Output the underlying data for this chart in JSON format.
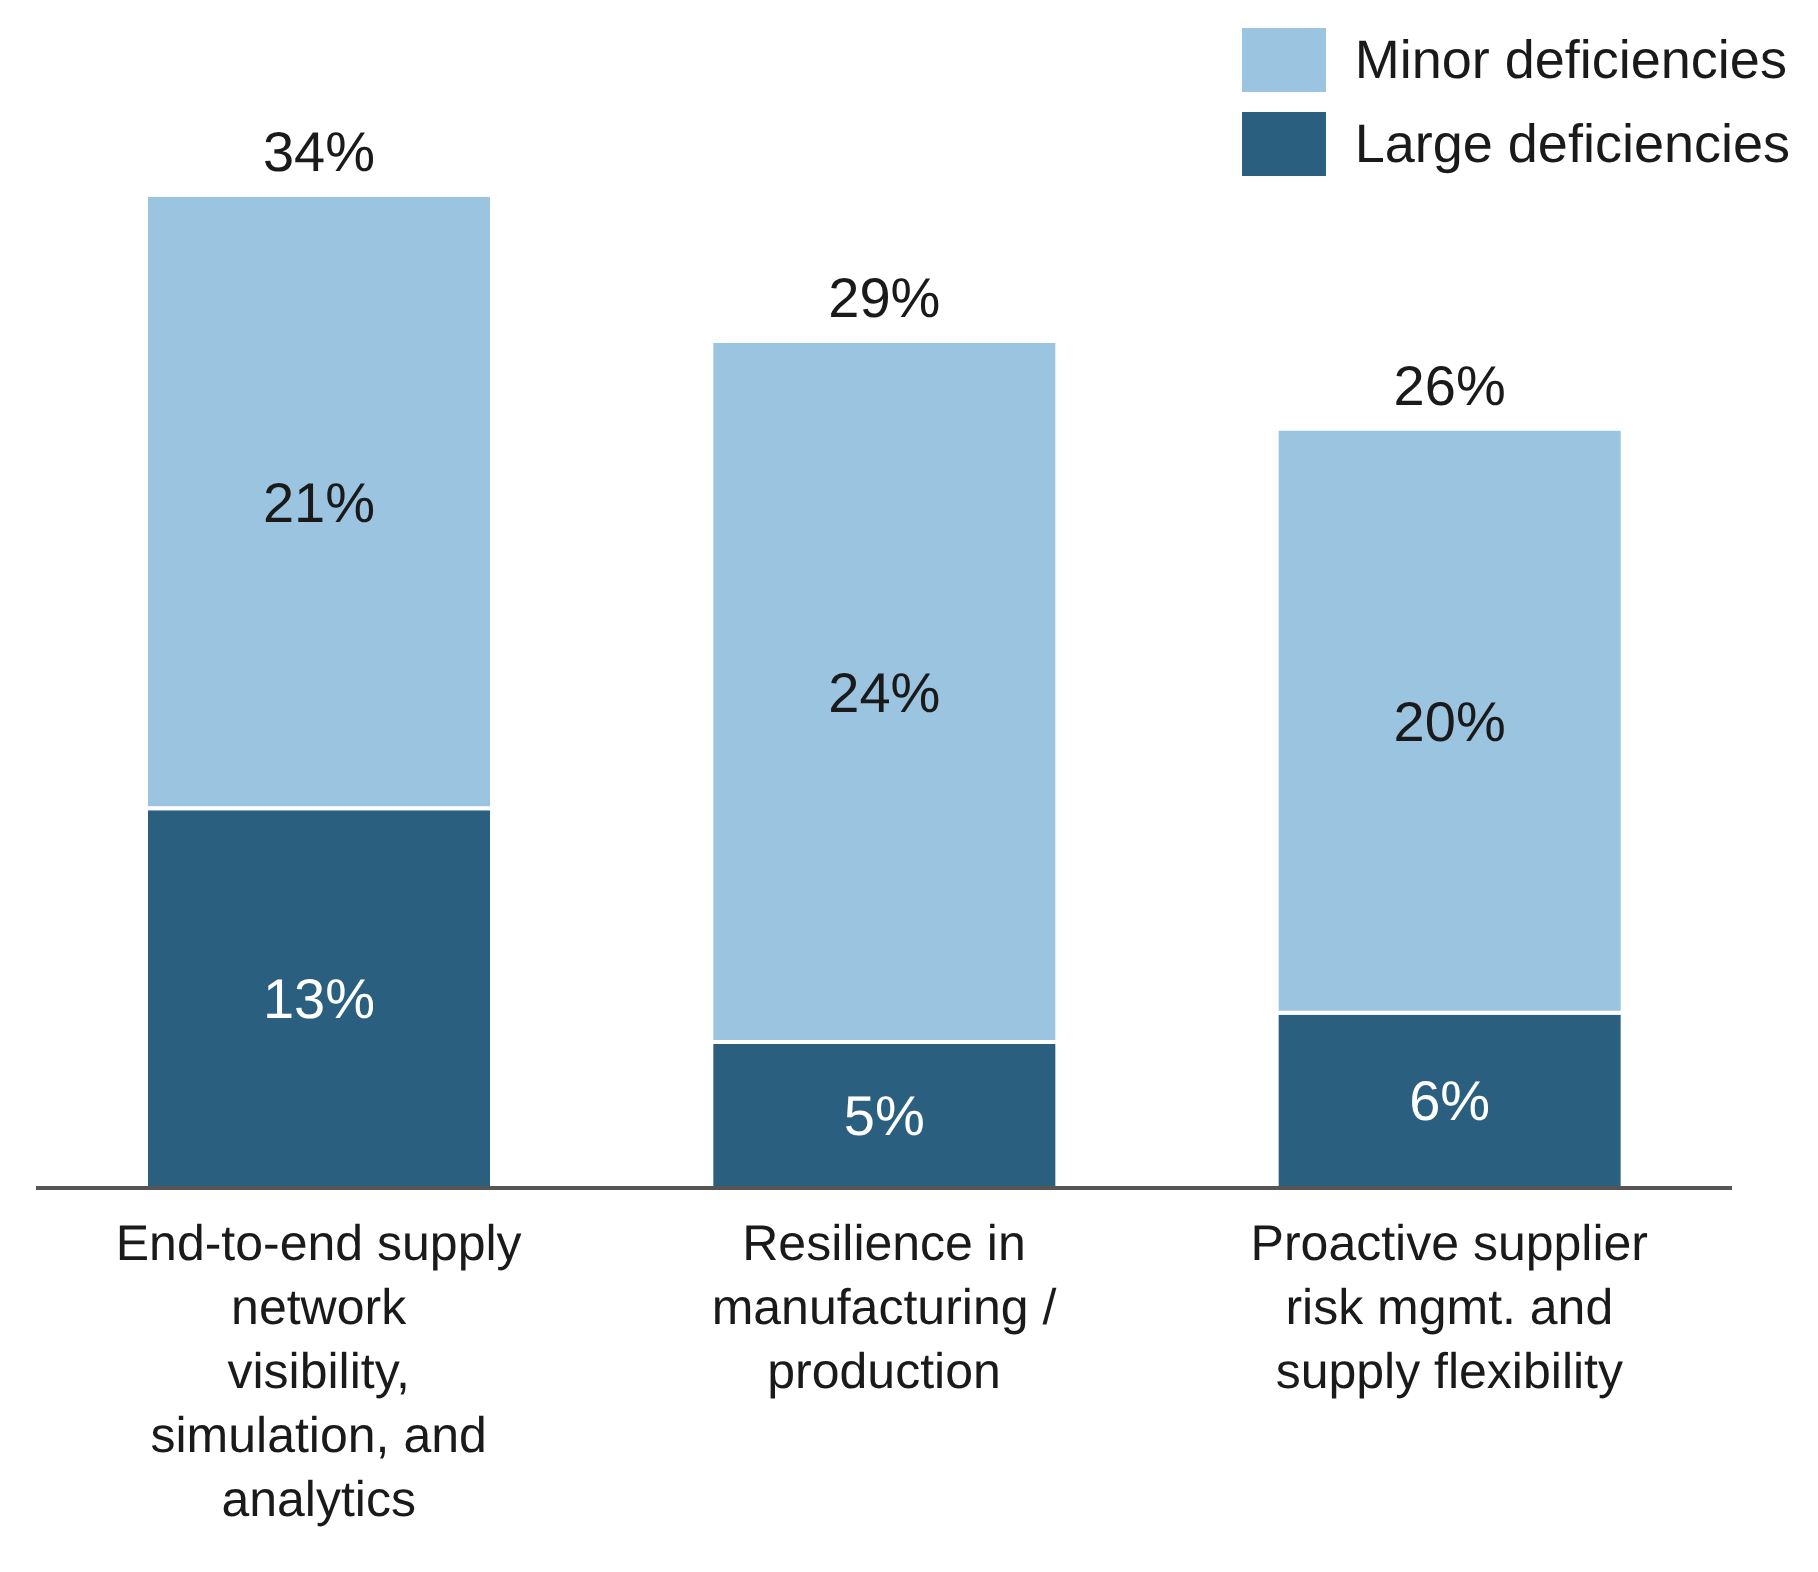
{
  "chart_data": {
    "type": "bar",
    "stacked": true,
    "categories": [
      "End-to-end supply network visibility, simulation, and analytics",
      "Resilience in manufacturing / production",
      "Proactive supplier risk mgmt. and supply flexibility"
    ],
    "series": [
      {
        "name": "Large deficiencies",
        "color": "#2a5f80",
        "values": [
          13,
          5,
          6
        ],
        "value_labels": [
          "13%",
          "5%",
          "6%"
        ]
      },
      {
        "name": "Minor deficiencies",
        "color": "#9ac4e0",
        "values": [
          21,
          24,
          20
        ],
        "value_labels": [
          "21%",
          "24%",
          "20%"
        ]
      }
    ],
    "totals": [
      "34%",
      "29%",
      "26%"
    ],
    "legend": "top right",
    "grid": false
  }
}
